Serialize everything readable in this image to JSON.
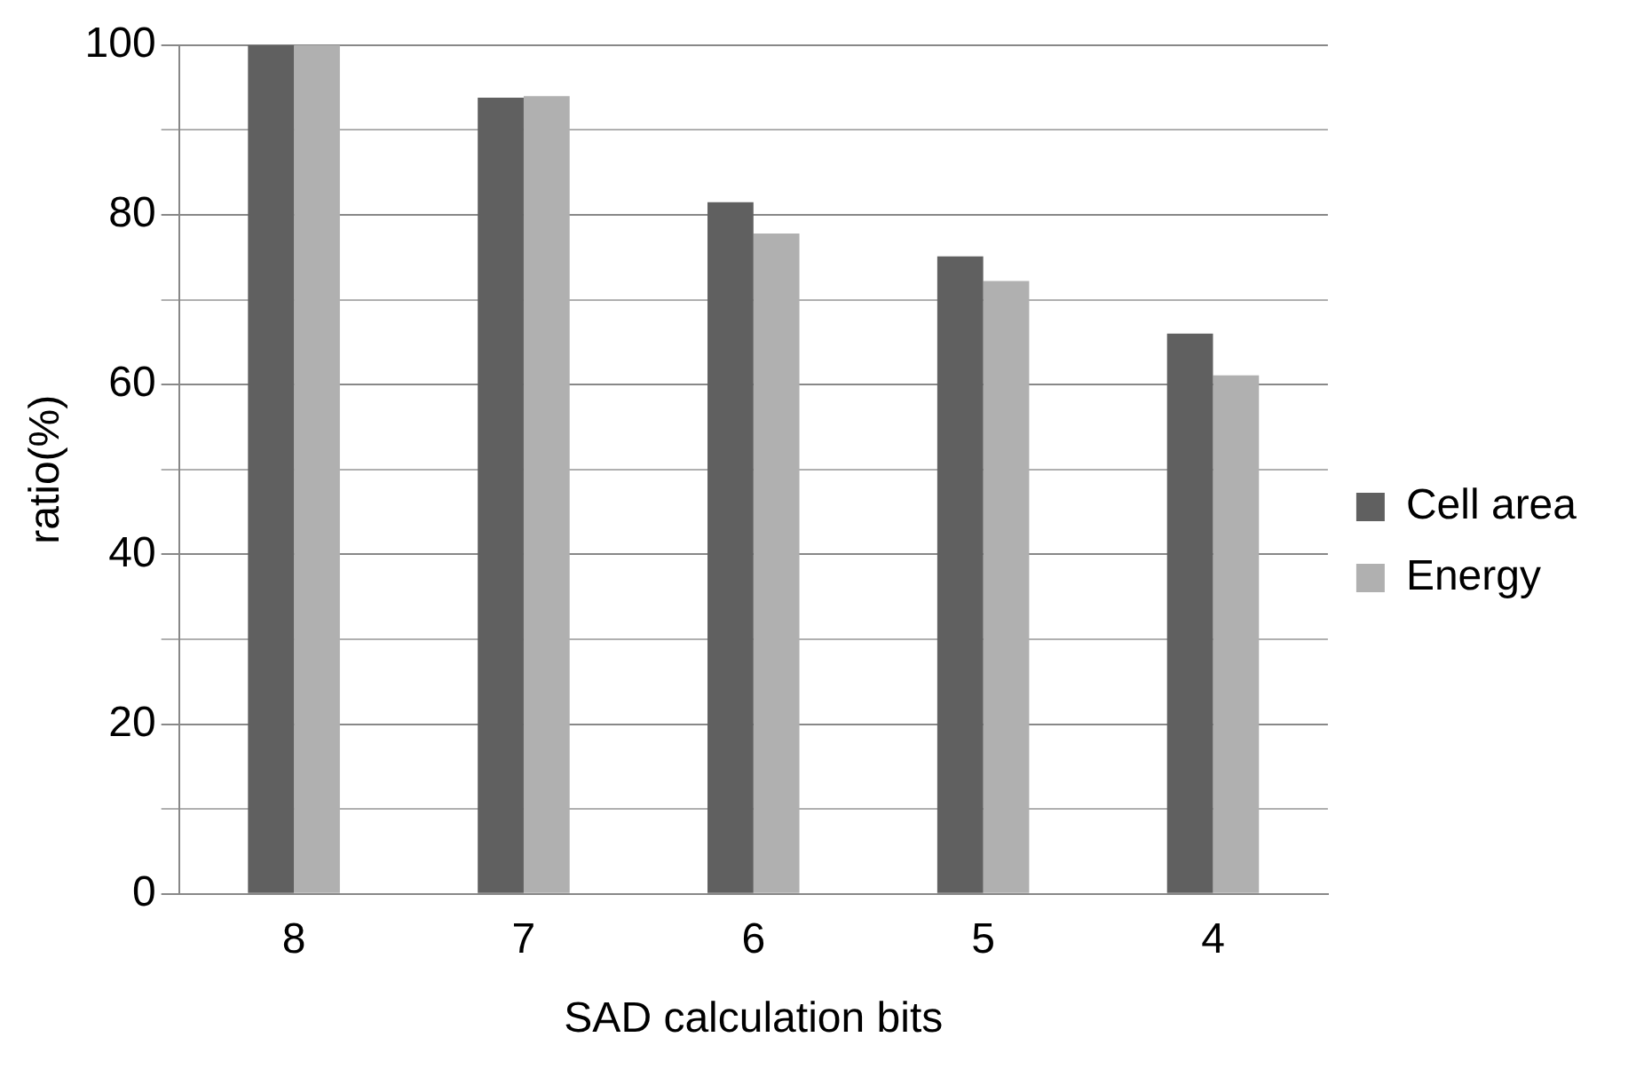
{
  "chart_data": {
    "type": "bar",
    "xlabel": "SAD calculation bits",
    "ylabel": "ratio(%)",
    "categories": [
      "8",
      "7",
      "6",
      "5",
      "4"
    ],
    "series": [
      {
        "name": "Cell area",
        "color": "#606060",
        "values": [
          100,
          93.8,
          81.5,
          75.1,
          66.0
        ]
      },
      {
        "name": "Energy",
        "color": "#b0b0b0",
        "values": [
          100,
          94.0,
          77.8,
          72.2,
          61.1
        ]
      }
    ],
    "ylim": [
      0,
      100
    ],
    "yticks": [
      0,
      {
        "value": 10,
        "label": null
      },
      20,
      {
        "value": 30,
        "label": null
      },
      40,
      {
        "value": 50,
        "label": null
      },
      60,
      {
        "value": 70,
        "label": null
      },
      80,
      {
        "value": 90,
        "label": null
      },
      100
    ],
    "grid": "y",
    "legend": "right"
  }
}
